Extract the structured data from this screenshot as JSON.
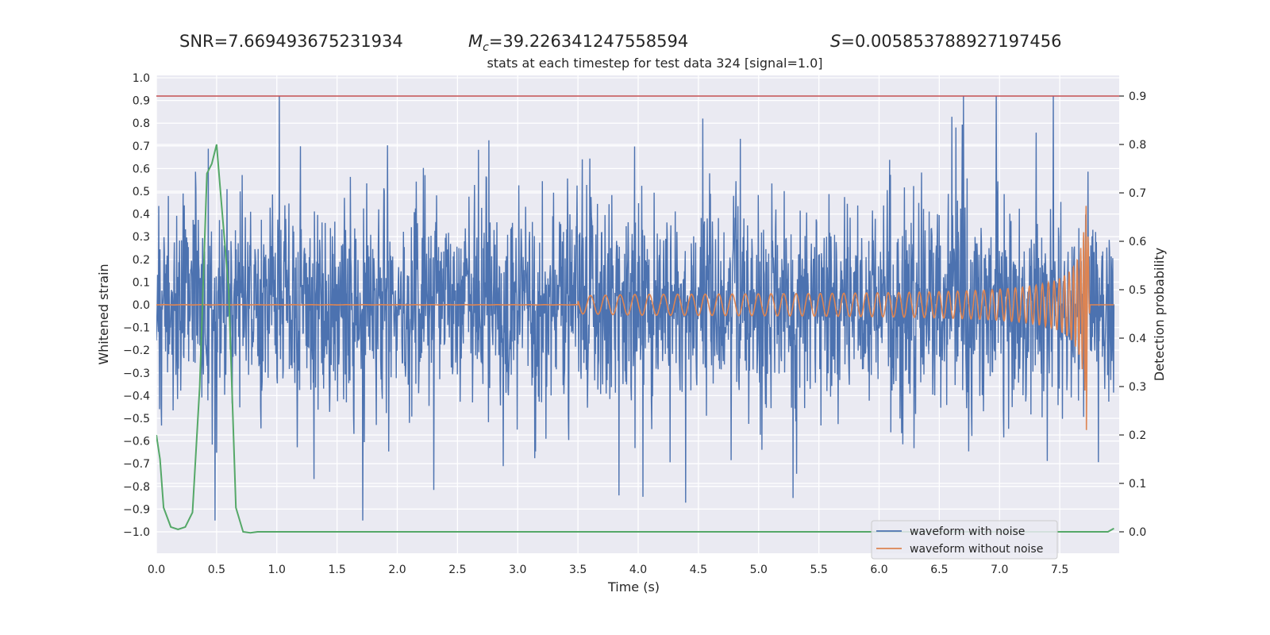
{
  "header": {
    "snr_label": "SNR=",
    "snr_value": "7.669493675231934",
    "mc_symbol": "M",
    "mc_subscript": "c",
    "mc_value": "=39.226341247558594",
    "s_symbol": "S",
    "s_value": "=0.005853788927197456"
  },
  "chart_data": {
    "type": "line",
    "title": "stats at each timestep for test data 324 [signal=1.0]",
    "xlabel": "Time (s)",
    "ylabel": "Whitened strain",
    "y2label": "Detection probability",
    "xlim": [
      0,
      8
    ],
    "ylim": [
      -1.1,
      1.1
    ],
    "y2lim": [
      -0.045,
      0.935
    ],
    "x_ticks": [
      0.0,
      0.5,
      1.0,
      1.5,
      2.0,
      2.5,
      3.0,
      3.5,
      4.0,
      4.5,
      5.0,
      5.5,
      6.0,
      6.5,
      7.0,
      7.5
    ],
    "x_tick_labels": [
      "0.0",
      "0.5",
      "1.0",
      "1.5",
      "2.0",
      "2.5",
      "3.0",
      "3.5",
      "4.0",
      "4.5",
      "5.0",
      "5.5",
      "6.0",
      "6.5",
      "7.0",
      "7.5"
    ],
    "y_ticks": [
      1.0,
      0.9,
      0.8,
      0.7,
      0.6,
      0.5,
      0.4,
      0.3,
      0.2,
      0.1,
      0.0,
      -0.1,
      -0.2,
      -0.3,
      -0.4,
      -0.5,
      -0.6,
      -0.7,
      -0.8,
      -0.9,
      -1.0
    ],
    "y_tick_labels": [
      "1.0",
      "0.9",
      "0.8",
      "0.7",
      "0.6",
      "0.5",
      "0.4",
      "0.3",
      "0.2",
      "0.1",
      "0.0",
      "−0.1",
      "−0.2",
      "−0.3",
      "−0.4",
      "−0.5",
      "−0.6",
      "−0.7",
      "−0.8",
      "−0.9",
      "−1.0"
    ],
    "y2_ticks": [
      0.9,
      0.8,
      0.7,
      0.6,
      0.5,
      0.4,
      0.3,
      0.2,
      0.1,
      0.0
    ],
    "y2_tick_labels": [
      "0.9",
      "0.8",
      "0.7",
      "0.6",
      "0.5",
      "0.4",
      "0.3",
      "0.2",
      "0.1",
      "0.0"
    ],
    "threshold": 0.9,
    "legend": {
      "position": "lower-right",
      "entries": [
        {
          "label": "waveform with noise",
          "color": "#4c72b0"
        },
        {
          "label": "waveform without noise",
          "color": "#dd8452"
        }
      ]
    },
    "colors": {
      "noisy": "#4c72b0",
      "clean": "#dd8452",
      "probability": "#55a868",
      "threshold": "#c44e52",
      "background": "#eaeaf2",
      "grid": "#ffffff"
    },
    "series": [
      {
        "name": "waveform with noise",
        "axis": "left",
        "samples": 8192,
        "range": [
          -0.95,
          0.92
        ]
      },
      {
        "name": "waveform without noise",
        "axis": "left",
        "merger_time": 7.72,
        "peak": 0.62,
        "trough": -0.6
      },
      {
        "axis": "right",
        "x": [
          0.0,
          0.03,
          0.06,
          0.12,
          0.18,
          0.24,
          0.3,
          0.36,
          0.42,
          0.46,
          0.5,
          0.54,
          0.6,
          0.66,
          0.72,
          0.78,
          0.84,
          1.0,
          2.0,
          3.0,
          4.0,
          5.0,
          6.0,
          7.0,
          7.6,
          7.8,
          7.9,
          7.95
        ],
        "y": [
          0.2,
          0.15,
          0.05,
          0.01,
          0.005,
          0.01,
          0.04,
          0.3,
          0.74,
          0.76,
          0.8,
          0.68,
          0.5,
          0.05,
          0.0,
          -0.002,
          0.0,
          0.0,
          0.0,
          0.0,
          0.0,
          0.0,
          0.0,
          0.0,
          0.0,
          0.0,
          0.0,
          0.007
        ]
      }
    ]
  }
}
